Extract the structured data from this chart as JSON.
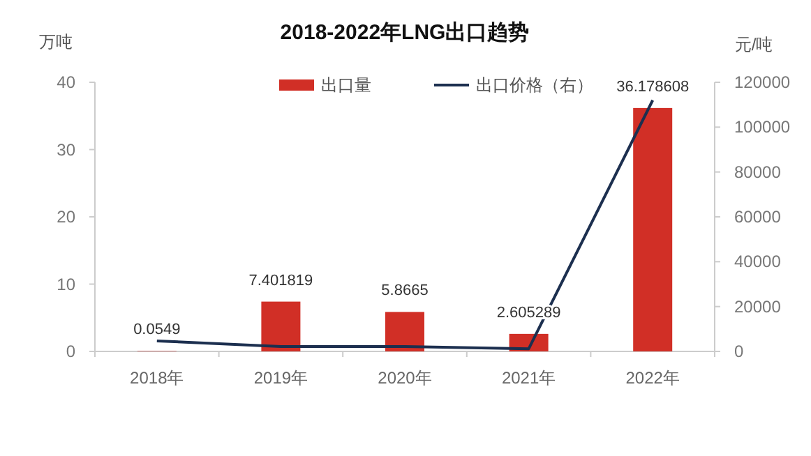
{
  "chart_data": {
    "type": "bar",
    "title": "2018-2022年LNG出口趋势",
    "ylabel": "万吨",
    "y2label": "元/吨",
    "categories": [
      "2018年",
      "2019年",
      "2020年",
      "2021年",
      "2022年"
    ],
    "series": [
      {
        "name": "出口量",
        "color": "#d12f26",
        "values": [
          0.0549,
          7.401819,
          5.8665,
          2.605289,
          36.178608
        ],
        "value_labels": [
          "0.0549",
          "7.401819",
          "5.8665",
          "2.605289",
          "36.178608"
        ]
      },
      {
        "name": "出口价格（右）",
        "type": "line",
        "axis": "y2",
        "color": "#1c2f4f",
        "values": [
          4700,
          2200,
          2200,
          1200,
          112000
        ]
      }
    ],
    "ylim": [
      0,
      40
    ],
    "yticks": [
      0,
      10,
      20,
      30,
      40
    ],
    "y2lim": [
      0,
      120000
    ],
    "y2ticks": [
      0,
      20000,
      40000,
      60000,
      80000,
      100000,
      120000
    ],
    "legend": "top",
    "grid": false
  }
}
